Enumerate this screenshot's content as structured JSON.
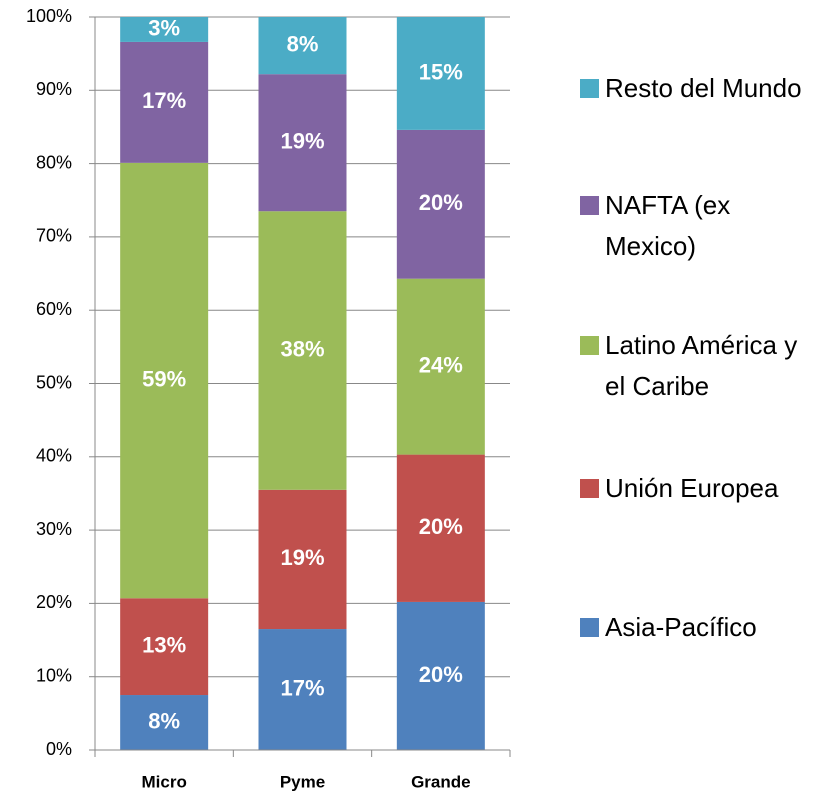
{
  "chart_data": {
    "type": "stacked_bar",
    "categories": [
      "Micro",
      "Pyme",
      "Grande"
    ],
    "series": [
      {
        "name": "Asia-Pacífico",
        "color": "#4f81bd",
        "values": [
          7.5,
          16.5,
          20.2
        ],
        "value_labels": [
          "8%",
          "17%",
          "20%"
        ]
      },
      {
        "name": "Unión Europea",
        "color": "#c0504d",
        "values": [
          13.2,
          19.0,
          20.1
        ],
        "value_labels": [
          "13%",
          "19%",
          "20%"
        ]
      },
      {
        "name": "Latino América y el Caribe",
        "color": "#9bbb59",
        "values": [
          59.4,
          38.0,
          24.0
        ],
        "value_labels": [
          "59%",
          "38%",
          "24%"
        ]
      },
      {
        "name": "NAFTA (ex Mexico)",
        "color": "#8064a2",
        "values": [
          16.5,
          18.7,
          20.3
        ],
        "value_labels": [
          "17%",
          "19%",
          "20%"
        ]
      },
      {
        "name": "Resto del Mundo",
        "color": "#4bacc6",
        "values": [
          3.4,
          7.8,
          15.4
        ],
        "value_labels": [
          "3%",
          "8%",
          "15%"
        ]
      }
    ],
    "ylim": [
      0,
      100
    ],
    "yticks": [
      {
        "value": 0,
        "label": "0%"
      },
      {
        "value": 10,
        "label": "10%"
      },
      {
        "value": 20,
        "label": "20%"
      },
      {
        "value": 30,
        "label": "30%"
      },
      {
        "value": 40,
        "label": "40%"
      },
      {
        "value": 50,
        "label": "50%"
      },
      {
        "value": 60,
        "label": "60%"
      },
      {
        "value": 70,
        "label": "70%"
      },
      {
        "value": 80,
        "label": "80%"
      },
      {
        "value": 90,
        "label": "90%"
      },
      {
        "value": 100,
        "label": "100%"
      }
    ],
    "grid": true,
    "legend": "right"
  }
}
